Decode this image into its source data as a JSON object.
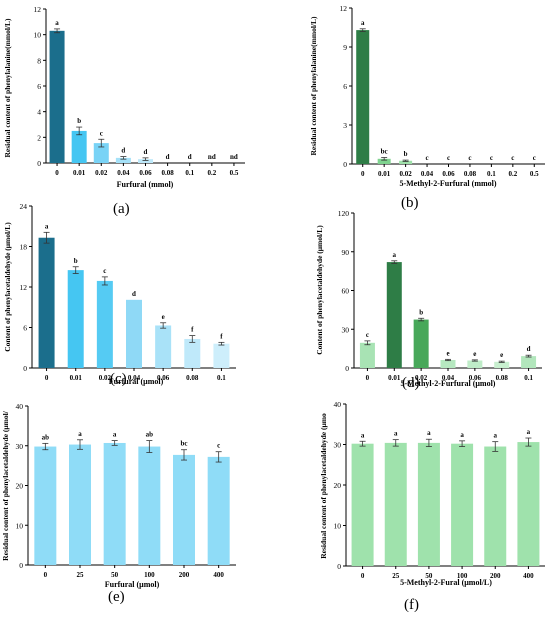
{
  "chart_data": [
    {
      "type": "bar",
      "panel_label": "(a)",
      "ylabel": "Residual content of phenylalanine(mmol/L)",
      "xlabel": "Furfural (mmol)",
      "categories": [
        "0",
        "0.01",
        "0.02",
        "0.04",
        "0.06",
        "0.08",
        "0.1",
        "0.2",
        "0.5"
      ],
      "values": [
        10.3,
        2.5,
        1.55,
        0.4,
        0.3,
        0.0,
        0.0,
        0.0,
        0.0
      ],
      "errors": [
        0.15,
        0.3,
        0.3,
        0.1,
        0.1,
        0.0,
        0.0,
        0.0,
        0.0
      ],
      "letters": [
        "a",
        "b",
        "c",
        "d",
        "d",
        "d",
        "d",
        "nd",
        "nd"
      ],
      "colors": [
        "#1b6e8c",
        "#45c6f2",
        "#79d3f6",
        "#a5e1f8",
        "#bfe9fa",
        "#cdedfb",
        "#d8f1fb",
        "#e3f5fc",
        "#ecf8fd"
      ],
      "ylim": [
        0,
        12
      ],
      "yticks": [
        "0",
        "2",
        "4",
        "6",
        "8",
        "10",
        "12"
      ],
      "grid": false
    },
    {
      "type": "bar",
      "panel_label": "(b)",
      "ylabel": "Residual content of phenylalanine(mmol/L)",
      "xlabel": "5-Methyl-2-Furfural (mmol)",
      "categories": [
        "0",
        "0.01",
        "0.02",
        "0.04",
        "0.06",
        "0.08",
        "0.1",
        "0.2",
        "0.5"
      ],
      "values": [
        10.3,
        0.4,
        0.25,
        0.0,
        0.0,
        0.0,
        0.0,
        0.0,
        0.0
      ],
      "errors": [
        0.1,
        0.1,
        0.05,
        0.0,
        0.0,
        0.0,
        0.0,
        0.0,
        0.0
      ],
      "letters": [
        "a",
        "bc",
        "b",
        "c",
        "c",
        "c",
        "c",
        "c",
        "c"
      ],
      "colors": [
        "#2e7d46",
        "#7fd38f",
        "#9fe0aa",
        "#b5e8bf",
        "#c3edca",
        "#cff1d5",
        "#d9f4dd",
        "#e2f6e5",
        "#eaf9ec"
      ],
      "ylim": [
        0,
        12
      ],
      "yticks": [
        "0",
        "3",
        "6",
        "9",
        "12"
      ],
      "grid": false
    },
    {
      "type": "bar",
      "panel_label": "(c)",
      "ylabel": "Content of phenylacetaldehyde (μmol/L)",
      "xlabel": "Furfural (μmol)",
      "categories": [
        "0",
        "0.01",
        "0.02",
        "0.04",
        "0.06",
        "0.08",
        "0.1"
      ],
      "values": [
        19.3,
        14.5,
        12.9,
        10.1,
        6.3,
        4.3,
        3.6
      ],
      "errors": [
        0.8,
        0.5,
        0.6,
        0.0,
        0.4,
        0.5,
        0.2
      ],
      "letters": [
        "a",
        "b",
        "c",
        "d",
        "e",
        "f",
        "f"
      ],
      "colors": [
        "#1b6e8c",
        "#45c6f2",
        "#55cbf3",
        "#8fd9f6",
        "#a9e2f8",
        "#bfe9fa",
        "#cdeefb"
      ],
      "ylim": [
        0,
        24
      ],
      "yticks": [
        "0",
        "6",
        "12",
        "18",
        "24"
      ],
      "grid": false
    },
    {
      "type": "bar",
      "panel_label": "(d)",
      "ylabel": "Content of phenylacetaldehyde (μmol/L)",
      "xlabel": "5-Methyl-2-Furfural (μmol)",
      "categories": [
        "0",
        "0.01",
        "0.02",
        "0.04",
        "0.06",
        "0.08",
        "0.1"
      ],
      "values": [
        19.5,
        82.0,
        37.5,
        6.2,
        5.8,
        4.8,
        9.2
      ],
      "errors": [
        1.5,
        1.0,
        1.0,
        0.5,
        0.5,
        0.5,
        0.7
      ],
      "letters": [
        "c",
        "a",
        "b",
        "e",
        "e",
        "e",
        "d"
      ],
      "colors": [
        "#a8e3b4",
        "#2e7d46",
        "#48a85a",
        "#b6e8c0",
        "#bfecc8",
        "#c8efcf",
        "#b2e6bc"
      ],
      "ylim": [
        0,
        120
      ],
      "yticks": [
        "0",
        "30",
        "60",
        "90",
        "120"
      ],
      "grid": false
    },
    {
      "type": "bar",
      "panel_label": "(e)",
      "ylabel": "Residual content of phenylacetaldehyde (μmol/",
      "xlabel": "Furfural (μmol)",
      "categories": [
        "0",
        "25",
        "50",
        "100",
        "200",
        "400"
      ],
      "values": [
        29.8,
        30.3,
        30.7,
        29.8,
        27.7,
        27.2
      ],
      "errors": [
        0.8,
        1.2,
        0.6,
        1.5,
        1.3,
        1.3
      ],
      "letters": [
        "ab",
        "a",
        "a",
        "ab",
        "bc",
        "c"
      ],
      "colors": [
        "#8fdcf7",
        "#8fdcf7",
        "#8fdcf7",
        "#8fdcf7",
        "#8fdcf7",
        "#8fdcf7"
      ],
      "ylim": [
        0,
        40
      ],
      "yticks": [
        "0",
        "10",
        "20",
        "30",
        "40"
      ],
      "grid": false
    },
    {
      "type": "bar",
      "panel_label": "(f)",
      "ylabel": "Residual content of phenylacetaldehyde (μmo",
      "xlabel": "5-Methyl-2-Fural (μmol/L)",
      "categories": [
        "0",
        "25",
        "50",
        "100",
        "200",
        "400"
      ],
      "values": [
        30.2,
        30.4,
        30.4,
        30.2,
        29.5,
        30.6
      ],
      "errors": [
        0.6,
        0.8,
        0.9,
        0.7,
        1.2,
        1.0
      ],
      "letters": [
        "a",
        "a",
        "a",
        "a",
        "a",
        "a"
      ],
      "colors": [
        "#9fe2ac",
        "#9fe2ac",
        "#9fe2ac",
        "#9fe2ac",
        "#9fe2ac",
        "#9fe2ac"
      ],
      "ylim": [
        0,
        40
      ],
      "yticks": [
        "0",
        "10",
        "20",
        "30",
        "40"
      ],
      "grid": false
    }
  ]
}
